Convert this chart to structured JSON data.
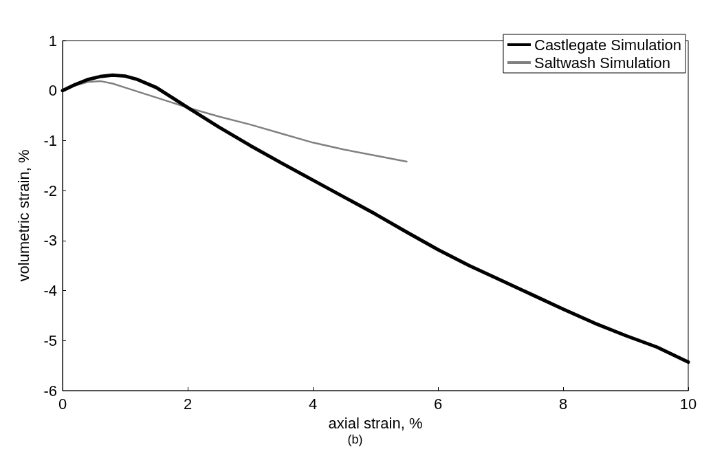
{
  "chart_data": {
    "type": "line",
    "xlabel": "axial strain, %",
    "ylabel": "volumetric strain, %",
    "annotations": [
      "(b)"
    ],
    "xlim": [
      0,
      10
    ],
    "xticks": [
      0,
      2,
      4,
      6,
      8,
      10
    ],
    "ylim": [
      -6,
      1
    ],
    "yticks": [
      -6,
      -5,
      -4,
      -3,
      -2,
      -1,
      0,
      1
    ],
    "grid": false,
    "legend": "top right",
    "line_style": "solid",
    "marker": "none",
    "series": [
      {
        "name": "Castlegate Simulation",
        "color": "#000000",
        "x": [
          0,
          0.2,
          0.4,
          0.6,
          0.8,
          1,
          1.2,
          1.5,
          2,
          2.5,
          3,
          3.5,
          4,
          4.5,
          5,
          5.5,
          6,
          6.5,
          7,
          7.5,
          8,
          8.5,
          9,
          9.5,
          10
        ],
        "values": [
          0,
          0.12,
          0.22,
          0.28,
          0.31,
          0.29,
          0.22,
          0.06,
          -0.34,
          -0.73,
          -1.1,
          -1.45,
          -1.79,
          -2.13,
          -2.47,
          -2.83,
          -3.18,
          -3.5,
          -3.79,
          -4.08,
          -4.37,
          -4.65,
          -4.9,
          -5.13,
          -5.43
        ]
      },
      {
        "name": "Saltwash Simulation",
        "color": "#808080",
        "x": [
          0,
          0.2,
          0.4,
          0.6,
          0.8,
          1,
          1.5,
          2,
          2.5,
          3,
          3.5,
          4,
          4.5,
          5,
          5.5
        ],
        "values": [
          0,
          0.1,
          0.17,
          0.19,
          0.14,
          0.06,
          -0.14,
          -0.34,
          -0.52,
          -0.68,
          -0.86,
          -1.04,
          -1.18,
          -1.3,
          -1.42
        ]
      }
    ]
  }
}
